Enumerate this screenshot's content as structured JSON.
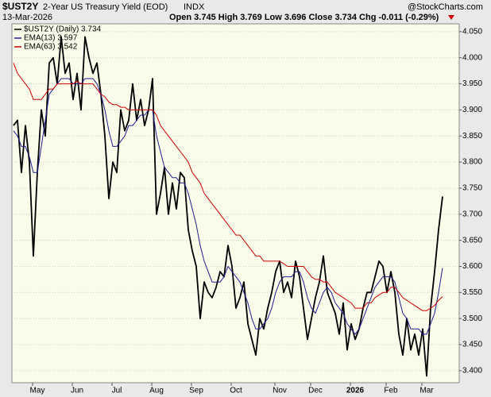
{
  "header": {
    "symbol": "$UST2Y",
    "title": "2-Year US Treasury Yield (EOD)",
    "exchange": "INDX",
    "date": "13-Mar-2026",
    "quote": "Open 3.745 High 3.769 Low 3.696 Close 3.734 Chg -0.011 (-0.29%)",
    "brand": "@StockCharts.com"
  },
  "chart_data": {
    "type": "line",
    "categories": [
      null,
      null,
      null,
      null,
      null,
      null,
      "May",
      null,
      null,
      null,
      null,
      null,
      null,
      null,
      null,
      null,
      "Jun",
      null,
      null,
      null,
      null,
      null,
      null,
      null,
      null,
      null,
      "Jul",
      null,
      null,
      null,
      null,
      null,
      null,
      null,
      null,
      null,
      "Aug",
      null,
      null,
      null,
      null,
      null,
      null,
      null,
      null,
      null,
      "Sep",
      null,
      null,
      null,
      null,
      null,
      null,
      null,
      null,
      null,
      "Oct",
      null,
      null,
      null,
      null,
      null,
      null,
      null,
      null,
      null,
      null,
      "Nov",
      null,
      null,
      null,
      null,
      null,
      null,
      null,
      null,
      "Dec",
      null,
      null,
      null,
      null,
      null,
      null,
      null,
      null,
      null,
      "2026",
      null,
      null,
      null,
      null,
      null,
      null,
      null,
      null,
      "Feb",
      null,
      null,
      null,
      null,
      null,
      null,
      null,
      null,
      "Mar",
      null,
      null,
      null,
      null
    ],
    "series": [
      {
        "name": "$UST2Y (Daily) 3.734",
        "color": "#000000",
        "width": 1.8,
        "values": [
          3.87,
          3.88,
          3.78,
          3.87,
          3.8,
          3.62,
          3.78,
          3.9,
          3.85,
          3.99,
          4.0,
          3.95,
          4.04,
          3.97,
          3.99,
          3.92,
          3.97,
          3.9,
          4.04,
          4.0,
          3.97,
          3.99,
          3.93,
          3.85,
          3.73,
          3.8,
          3.78,
          3.9,
          3.86,
          3.88,
          3.95,
          3.88,
          3.92,
          3.87,
          3.9,
          3.96,
          3.7,
          3.74,
          3.79,
          3.7,
          3.76,
          3.71,
          3.78,
          3.77,
          3.67,
          3.63,
          3.6,
          3.5,
          3.57,
          3.55,
          3.54,
          3.56,
          3.59,
          3.58,
          3.64,
          3.6,
          3.52,
          3.54,
          3.57,
          3.49,
          3.46,
          3.43,
          3.5,
          3.48,
          3.52,
          3.55,
          3.59,
          3.61,
          3.55,
          3.57,
          3.54,
          3.61,
          3.58,
          3.52,
          3.46,
          3.5,
          3.54,
          3.57,
          3.62,
          3.55,
          3.53,
          3.51,
          3.47,
          3.53,
          3.44,
          3.49,
          3.46,
          3.48,
          3.52,
          3.55,
          3.55,
          3.58,
          3.61,
          3.6,
          3.55,
          3.59,
          3.55,
          3.47,
          3.43,
          3.5,
          3.44,
          3.47,
          3.43,
          3.48,
          3.39,
          3.52,
          3.59,
          3.67,
          3.734
        ]
      },
      {
        "name": "EMA(13) 3.597",
        "color": "#1f1f8f",
        "width": 1,
        "values": [
          3.86,
          3.85,
          3.83,
          3.83,
          3.81,
          3.78,
          3.78,
          3.83,
          3.88,
          3.93,
          3.94,
          3.95,
          3.96,
          3.96,
          3.96,
          3.95,
          3.95,
          3.95,
          3.96,
          3.96,
          3.96,
          3.95,
          3.93,
          3.9,
          3.86,
          3.83,
          3.83,
          3.84,
          3.85,
          3.87,
          3.87,
          3.88,
          3.89,
          3.89,
          3.9,
          3.9,
          3.85,
          3.82,
          3.79,
          3.78,
          3.77,
          3.77,
          3.76,
          3.76,
          3.74,
          3.71,
          3.68,
          3.64,
          3.61,
          3.59,
          3.57,
          3.57,
          3.57,
          3.58,
          3.6,
          3.59,
          3.58,
          3.57,
          3.55,
          3.53,
          3.5,
          3.48,
          3.48,
          3.49,
          3.5,
          3.52,
          3.55,
          3.57,
          3.58,
          3.58,
          3.58,
          3.59,
          3.59,
          3.57,
          3.54,
          3.52,
          3.51,
          3.53,
          3.55,
          3.56,
          3.55,
          3.53,
          3.52,
          3.51,
          3.49,
          3.48,
          3.47,
          3.48,
          3.5,
          3.52,
          3.54,
          3.56,
          3.57,
          3.58,
          3.58,
          3.58,
          3.57,
          3.54,
          3.51,
          3.5,
          3.48,
          3.48,
          3.48,
          3.47,
          3.47,
          3.49,
          3.51,
          3.55,
          3.597
        ]
      },
      {
        "name": "EMA(63) 3.542",
        "color": "#cc0000",
        "width": 1,
        "values": [
          3.99,
          3.97,
          3.96,
          3.95,
          3.94,
          3.92,
          3.92,
          3.92,
          3.93,
          3.94,
          3.94,
          3.95,
          3.95,
          3.95,
          3.95,
          3.95,
          3.955,
          3.95,
          3.95,
          3.95,
          3.95,
          3.94,
          3.93,
          3.925,
          3.915,
          3.91,
          3.91,
          3.905,
          3.905,
          3.9,
          3.9,
          3.9,
          3.9,
          3.9,
          3.9,
          3.9,
          3.89,
          3.87,
          3.86,
          3.85,
          3.84,
          3.83,
          3.82,
          3.81,
          3.8,
          3.78,
          3.77,
          3.76,
          3.74,
          3.73,
          3.72,
          3.71,
          3.7,
          3.69,
          3.68,
          3.67,
          3.66,
          3.66,
          3.65,
          3.64,
          3.63,
          3.62,
          3.62,
          3.61,
          3.61,
          3.61,
          3.61,
          3.61,
          3.605,
          3.6,
          3.6,
          3.6,
          3.6,
          3.6,
          3.59,
          3.58,
          3.575,
          3.575,
          3.57,
          3.57,
          3.56,
          3.55,
          3.545,
          3.54,
          3.535,
          3.53,
          3.52,
          3.52,
          3.52,
          3.53,
          3.53,
          3.54,
          3.545,
          3.55,
          3.55,
          3.56,
          3.56,
          3.55,
          3.54,
          3.535,
          3.53,
          3.525,
          3.52,
          3.515,
          3.515,
          3.52,
          3.525,
          3.535,
          3.542
        ]
      }
    ],
    "ylim": [
      3.377,
      4.065
    ],
    "yticks": [
      {
        "value": 3.4,
        "label": "3.400"
      },
      {
        "value": 3.45,
        "label": "3.450"
      },
      {
        "value": 3.5,
        "label": "3.500"
      },
      {
        "value": 3.55,
        "label": "3.550"
      },
      {
        "value": 3.6,
        "label": "3.600"
      },
      {
        "value": 3.65,
        "label": "3.650"
      },
      {
        "value": 3.7,
        "label": "3.700"
      },
      {
        "value": 3.75,
        "label": "3.750"
      },
      {
        "value": 3.8,
        "label": "3.800"
      },
      {
        "value": 3.85,
        "label": "3.850"
      },
      {
        "value": 3.9,
        "label": "3.900"
      },
      {
        "value": 3.95,
        "label": "3.950"
      },
      {
        "value": 4.0,
        "label": "4.000"
      },
      {
        "value": 4.05,
        "label": "4.050"
      }
    ],
    "grid": true,
    "legend": "upper left",
    "background": "#fbfbea"
  }
}
